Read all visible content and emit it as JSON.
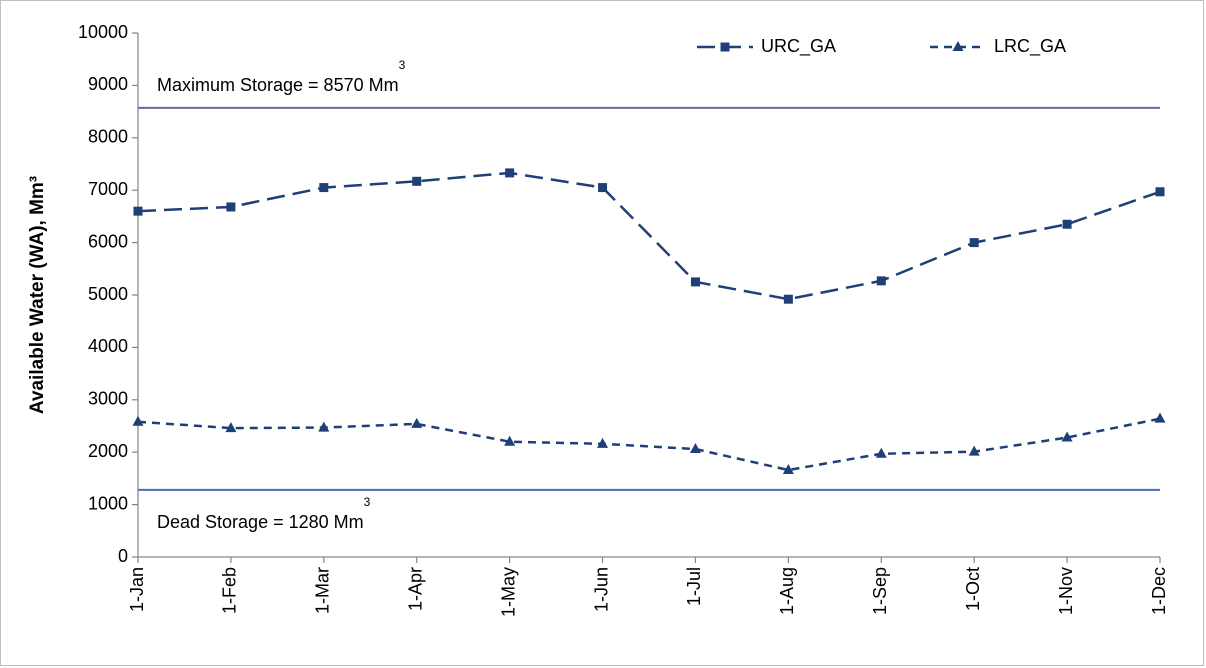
{
  "chart_data": {
    "type": "line",
    "y_label": "Available Water (WA), Mm³",
    "categories": [
      "1-Jan",
      "1-Feb",
      "1-Mar",
      "1-Apr",
      "1-May",
      "1-Jun",
      "1-Jul",
      "1-Aug",
      "1-Sep",
      "1-Oct",
      "1-Nov",
      "1-Dec"
    ],
    "series": [
      {
        "name": "URC_GA",
        "color": "#1f3f77",
        "marker": "square",
        "dash": "long",
        "values": [
          6600,
          6680,
          7050,
          7170,
          7330,
          7050,
          5250,
          4920,
          5270,
          6000,
          6350,
          6970
        ]
      },
      {
        "name": "LRC_GA",
        "color": "#1f3f77",
        "marker": "triangle",
        "dash": "short",
        "values": [
          2580,
          2460,
          2470,
          2540,
          2200,
          2160,
          2060,
          1660,
          1970,
          2010,
          2280,
          2640
        ]
      }
    ],
    "reference_lines": [
      {
        "text": "Maximum Storage = 8570 Mm",
        "sup": "3",
        "value": 8570,
        "color": "#7a5f9c"
      },
      {
        "text": "Dead Storage = 1280 Mm",
        "sup": "3",
        "value": 1280,
        "color": "#4a6cb0"
      }
    ],
    "ylim": [
      0,
      10000
    ],
    "yticks": [
      0,
      1000,
      2000,
      3000,
      4000,
      5000,
      6000,
      7000,
      8000,
      9000,
      10000
    ],
    "grid": false,
    "legend": "top-right"
  }
}
